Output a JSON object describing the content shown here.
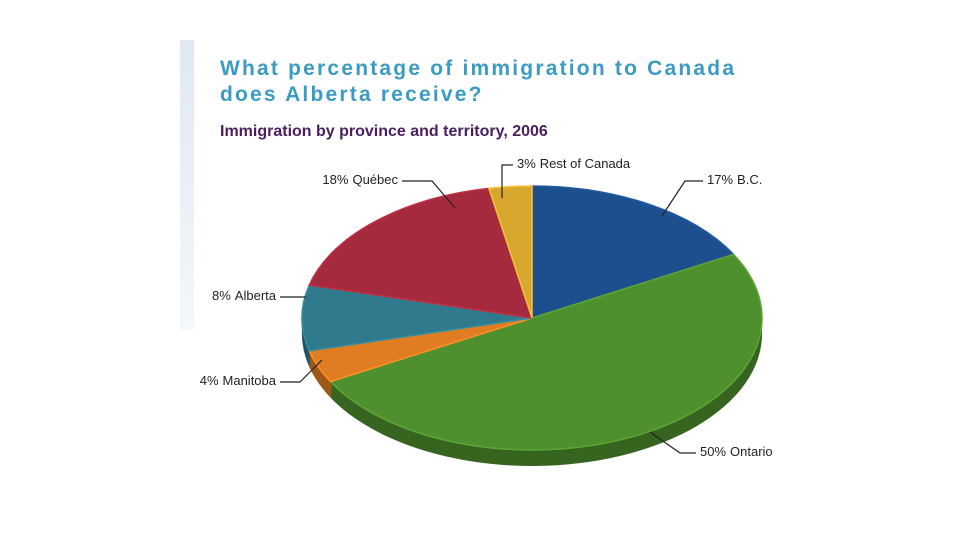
{
  "chart_data": {
    "type": "pie",
    "title": "What percentage of immigration to Canada does Alberta receive?",
    "subtitle": "Immigration by province and territory, 2006",
    "categories": [
      "B.C.",
      "Ontario",
      "Manitoba",
      "Alberta",
      "Québec",
      "Rest of Canada"
    ],
    "values": [
      17,
      50,
      4,
      8,
      18,
      3
    ],
    "value_labels": [
      "17%",
      "50%",
      "4%",
      "8%",
      "18%",
      "3%"
    ],
    "colors": [
      "#1d4f8e",
      "#4f902e",
      "#e07d22",
      "#2f7a8c",
      "#a62a3e",
      "#d8a82e"
    ]
  }
}
